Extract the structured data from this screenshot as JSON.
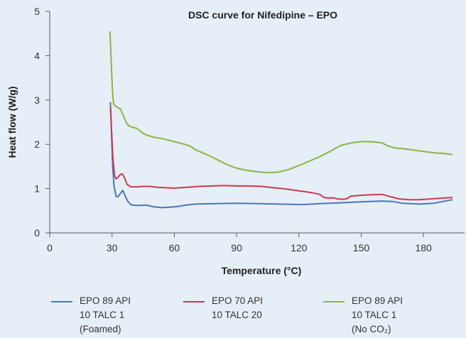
{
  "chart_data": {
    "type": "line",
    "title": "DSC curve for Nifedipine – EPO",
    "xlabel": "Temperature (°C)",
    "ylabel": "Heat flow (W/g)",
    "xlim": [
      0,
      195
    ],
    "ylim": [
      0,
      5
    ],
    "xticks": [
      0,
      30,
      60,
      90,
      120,
      150,
      180
    ],
    "yticks": [
      0,
      1,
      2,
      3,
      4,
      5
    ],
    "grid": false,
    "legend_position": "bottom",
    "series": [
      {
        "name": "EPO 89 API\n10 TALC 1\n(Foamed)",
        "color": "#4a76b8",
        "points": [
          [
            29.2,
            2.95
          ],
          [
            29.8,
            2.2
          ],
          [
            30.3,
            1.5
          ],
          [
            31,
            1.05
          ],
          [
            32,
            0.82
          ],
          [
            33,
            0.82
          ],
          [
            34.2,
            0.9
          ],
          [
            35.2,
            0.96
          ],
          [
            36.2,
            0.85
          ],
          [
            37.5,
            0.72
          ],
          [
            39,
            0.64
          ],
          [
            41,
            0.62
          ],
          [
            44,
            0.62
          ],
          [
            46,
            0.63
          ],
          [
            48,
            0.61
          ],
          [
            50,
            0.59
          ],
          [
            54,
            0.57
          ],
          [
            58,
            0.58
          ],
          [
            62,
            0.6
          ],
          [
            66,
            0.63
          ],
          [
            70,
            0.65
          ],
          [
            80,
            0.66
          ],
          [
            90,
            0.67
          ],
          [
            100,
            0.66
          ],
          [
            110,
            0.65
          ],
          [
            122,
            0.64
          ],
          [
            130,
            0.66
          ],
          [
            140,
            0.68
          ],
          [
            150,
            0.7
          ],
          [
            160,
            0.72
          ],
          [
            165,
            0.71
          ],
          [
            170,
            0.67
          ],
          [
            178,
            0.65
          ],
          [
            185,
            0.67
          ],
          [
            194,
            0.75
          ]
        ]
      },
      {
        "name": "EPO 70 API\n10 TALC 20",
        "color": "#d0384e",
        "points": [
          [
            29.2,
            2.85
          ],
          [
            29.8,
            2.3
          ],
          [
            30.4,
            1.7
          ],
          [
            31.2,
            1.3
          ],
          [
            32,
            1.22
          ],
          [
            33,
            1.26
          ],
          [
            34,
            1.32
          ],
          [
            35,
            1.33
          ],
          [
            36,
            1.25
          ],
          [
            37.2,
            1.1
          ],
          [
            39,
            1.04
          ],
          [
            42,
            1.04
          ],
          [
            45,
            1.05
          ],
          [
            48,
            1.05
          ],
          [
            52,
            1.03
          ],
          [
            56,
            1.02
          ],
          [
            60,
            1.01
          ],
          [
            66,
            1.03
          ],
          [
            72,
            1.05
          ],
          [
            78,
            1.06
          ],
          [
            84,
            1.07
          ],
          [
            90,
            1.06
          ],
          [
            96,
            1.06
          ],
          [
            102,
            1.05
          ],
          [
            108,
            1.02
          ],
          [
            114,
            0.99
          ],
          [
            120,
            0.95
          ],
          [
            126,
            0.91
          ],
          [
            130,
            0.87
          ],
          [
            132,
            0.8
          ],
          [
            134,
            0.79
          ],
          [
            137,
            0.79
          ],
          [
            138,
            0.77
          ],
          [
            141,
            0.76
          ],
          [
            143,
            0.77
          ],
          [
            145,
            0.83
          ],
          [
            150,
            0.85
          ],
          [
            155,
            0.86
          ],
          [
            160,
            0.87
          ],
          [
            163,
            0.83
          ],
          [
            168,
            0.77
          ],
          [
            173,
            0.75
          ],
          [
            178,
            0.75
          ],
          [
            184,
            0.77
          ],
          [
            194,
            0.8
          ]
        ]
      },
      {
        "name": "EPO 89 API\n10 TALC 1\n(No CO₂)",
        "color": "#8db544",
        "points": [
          [
            29.0,
            4.55
          ],
          [
            29.5,
            4.0
          ],
          [
            30.2,
            3.2
          ],
          [
            30.8,
            2.9
          ],
          [
            32,
            2.85
          ],
          [
            33,
            2.82
          ],
          [
            34,
            2.8
          ],
          [
            35,
            2.7
          ],
          [
            36,
            2.58
          ],
          [
            37,
            2.48
          ],
          [
            38,
            2.42
          ],
          [
            40,
            2.38
          ],
          [
            42,
            2.36
          ],
          [
            44,
            2.28
          ],
          [
            46,
            2.22
          ],
          [
            50,
            2.16
          ],
          [
            55,
            2.12
          ],
          [
            60,
            2.06
          ],
          [
            65,
            2.0
          ],
          [
            68,
            1.95
          ],
          [
            70,
            1.88
          ],
          [
            75,
            1.78
          ],
          [
            80,
            1.67
          ],
          [
            85,
            1.55
          ],
          [
            90,
            1.46
          ],
          [
            95,
            1.41
          ],
          [
            100,
            1.38
          ],
          [
            105,
            1.36
          ],
          [
            110,
            1.37
          ],
          [
            115,
            1.43
          ],
          [
            120,
            1.52
          ],
          [
            125,
            1.62
          ],
          [
            130,
            1.72
          ],
          [
            135,
            1.84
          ],
          [
            140,
            1.97
          ],
          [
            145,
            2.03
          ],
          [
            150,
            2.06
          ],
          [
            155,
            2.06
          ],
          [
            160,
            2.03
          ],
          [
            163,
            1.96
          ],
          [
            166,
            1.92
          ],
          [
            170,
            1.9
          ],
          [
            175,
            1.87
          ],
          [
            180,
            1.84
          ],
          [
            185,
            1.81
          ],
          [
            190,
            1.79
          ],
          [
            194,
            1.77
          ]
        ]
      }
    ]
  },
  "legend": [
    {
      "label": "EPO 89 API\n10 TALC 1\n(Foamed)",
      "color": "#4a76b8"
    },
    {
      "label": "EPO 70 API\n10 TALC 20",
      "color": "#d0384e"
    },
    {
      "label": "EPO 89 API\n10 TALC 1\n(No CO₂)",
      "color": "#8db544"
    }
  ]
}
